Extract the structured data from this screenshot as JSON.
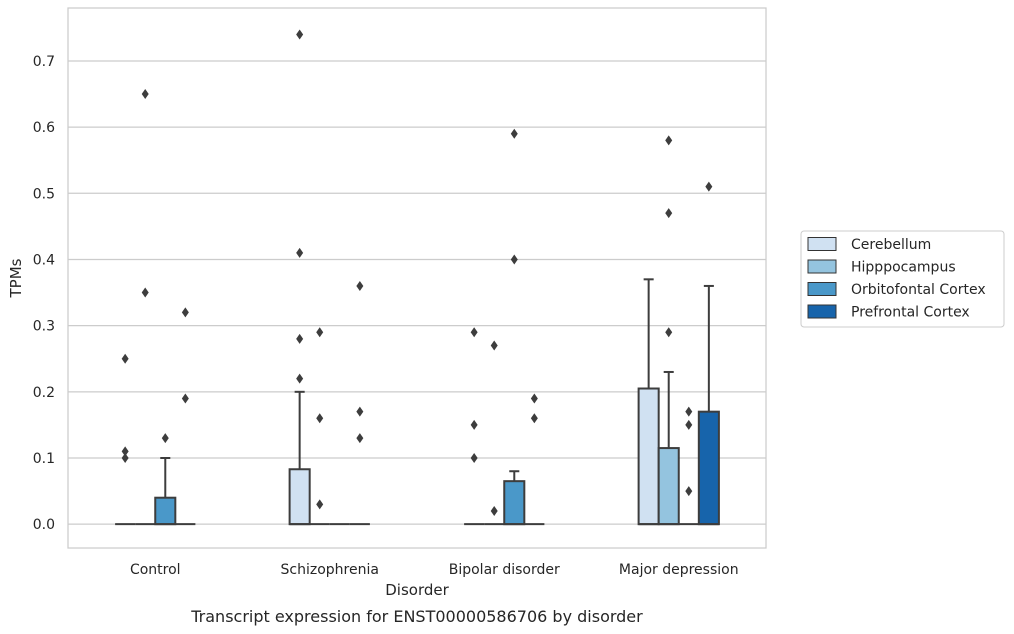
{
  "chart_data": {
    "type": "box",
    "xlabel": "Disorder",
    "ylabel": "TPMs",
    "caption": "Transcript expression for ENST00000586706 by disorder",
    "ylim": [
      -0.036,
      0.78
    ],
    "yticks": [
      "0.0",
      "0.1",
      "0.2",
      "0.3",
      "0.4",
      "0.5",
      "0.6",
      "0.7"
    ],
    "grid": "horizontal",
    "legend_position": "right",
    "categories": [
      "Control",
      "Schizophrenia",
      "Bipolar disorder",
      "Major depression"
    ],
    "series": [
      {
        "name": "Cerebellum",
        "color": "#d0e1f2",
        "boxes": [
          {
            "q1": 0,
            "median": 0,
            "q3": 0,
            "whisker_low": 0,
            "whisker_high": 0,
            "outliers": [
              0.25,
              0.11,
              0.1
            ]
          },
          {
            "q1": 0,
            "median": 0,
            "q3": 0.083,
            "whisker_low": 0,
            "whisker_high": 0.2,
            "outliers": [
              0.74,
              0.41,
              0.28,
              0.22
            ]
          },
          {
            "q1": 0,
            "median": 0,
            "q3": 0,
            "whisker_low": 0,
            "whisker_high": 0,
            "outliers": [
              0.29,
              0.15,
              0.1
            ]
          },
          {
            "q1": 0,
            "median": 0,
            "q3": 0.205,
            "whisker_low": 0,
            "whisker_high": 0.37,
            "outliers": []
          }
        ]
      },
      {
        "name": "Hipppocampus",
        "color": "#94c4df",
        "boxes": [
          {
            "q1": 0,
            "median": 0,
            "q3": 0,
            "whisker_low": 0,
            "whisker_high": 0,
            "outliers": [
              0.65,
              0.35
            ]
          },
          {
            "q1": 0,
            "median": 0,
            "q3": 0,
            "whisker_low": 0,
            "whisker_high": 0,
            "outliers": [
              0.29,
              0.16,
              0.03
            ]
          },
          {
            "q1": 0,
            "median": 0,
            "q3": 0,
            "whisker_low": 0,
            "whisker_high": 0,
            "outliers": [
              0.27,
              0.02
            ]
          },
          {
            "q1": 0,
            "median": 0,
            "q3": 0.115,
            "whisker_low": 0,
            "whisker_high": 0.23,
            "outliers": [
              0.58,
              0.47,
              0.29
            ]
          }
        ]
      },
      {
        "name": "Orbitofontal Cortex",
        "color": "#4a98c9",
        "boxes": [
          {
            "q1": 0,
            "median": 0,
            "q3": 0.04,
            "whisker_low": 0,
            "whisker_high": 0.1,
            "outliers": [
              0.13
            ]
          },
          {
            "q1": 0,
            "median": 0,
            "q3": 0,
            "whisker_low": 0,
            "whisker_high": 0,
            "outliers": []
          },
          {
            "q1": 0,
            "median": 0,
            "q3": 0.065,
            "whisker_low": 0,
            "whisker_high": 0.08,
            "outliers": [
              0.59,
              0.4
            ]
          },
          {
            "q1": 0,
            "median": 0,
            "q3": 0,
            "whisker_low": 0,
            "whisker_high": 0,
            "outliers": [
              0.17,
              0.15,
              0.05
            ]
          }
        ]
      },
      {
        "name": "Prefrontal Cortex",
        "color": "#1764ab",
        "boxes": [
          {
            "q1": 0,
            "median": 0,
            "q3": 0,
            "whisker_low": 0,
            "whisker_high": 0,
            "outliers": [
              0.32,
              0.19
            ]
          },
          {
            "q1": 0,
            "median": 0,
            "q3": 0,
            "whisker_low": 0,
            "whisker_high": 0,
            "outliers": [
              0.36,
              0.17,
              0.13
            ]
          },
          {
            "q1": 0,
            "median": 0,
            "q3": 0,
            "whisker_low": 0,
            "whisker_high": 0,
            "outliers": [
              0.19,
              0.16
            ]
          },
          {
            "q1": 0,
            "median": 0,
            "q3": 0.17,
            "whisker_low": 0,
            "whisker_high": 0.36,
            "outliers": [
              0.51
            ]
          }
        ]
      }
    ]
  }
}
